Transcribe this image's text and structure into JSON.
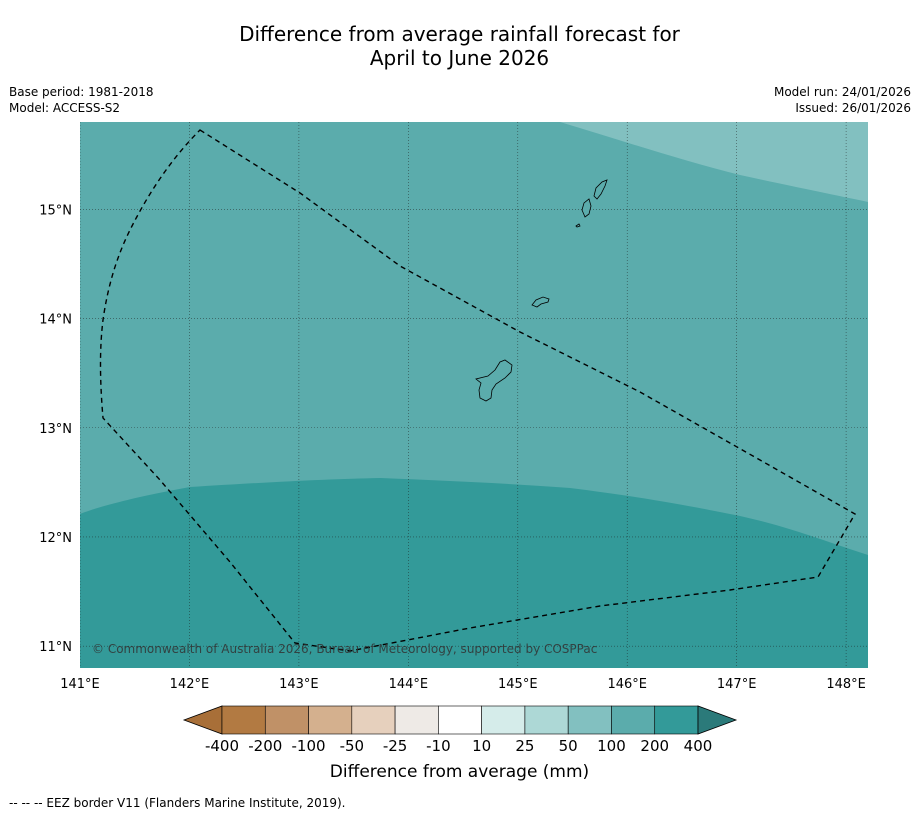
{
  "title": {
    "line1": "Difference from average rainfall forecast for",
    "line2": "April to June 2026"
  },
  "meta": {
    "base_period": "Base period: 1981-2018",
    "model": "Model: ACCESS-S2",
    "model_run": "Model run: 24/01/2026",
    "issued": "Issued: 26/01/2026"
  },
  "map": {
    "lon_range": [
      141,
      148.2
    ],
    "lat_range": [
      10.8,
      15.8
    ],
    "lon_ticks": [
      "141°E",
      "142°E",
      "143°E",
      "144°E",
      "145°E",
      "146°E",
      "147°E",
      "148°E"
    ],
    "lat_ticks": [
      "15°N",
      "14°N",
      "13°N",
      "12°N",
      "11°N"
    ],
    "copyright": "© Commonwealth of Australia 2026, Bureau of Meteorology, supported by COSPPac",
    "colors": {
      "band_100_200": "#5bacac",
      "band_50_100": "#82c0c0",
      "band_200_400": "#339a99",
      "land": "#5bacac"
    }
  },
  "colorbar": {
    "ticks": [
      "-400",
      "-200",
      "-100",
      "-50",
      "-25",
      "-10",
      "10",
      "25",
      "50",
      "100",
      "200",
      "400"
    ],
    "colors": [
      "#a86f38",
      "#b27a42",
      "#c09167",
      "#d4b08e",
      "#e6d0bd",
      "#eeeae6",
      "#ffffff",
      "#d5ecea",
      "#add8d6",
      "#82c0c0",
      "#5bacac",
      "#339a99",
      "#2b7a7a"
    ],
    "label": "Difference from average (mm)"
  },
  "footnote": "-- -- -- EEZ border V11 (Flanders Marine Institute, 2019)."
}
